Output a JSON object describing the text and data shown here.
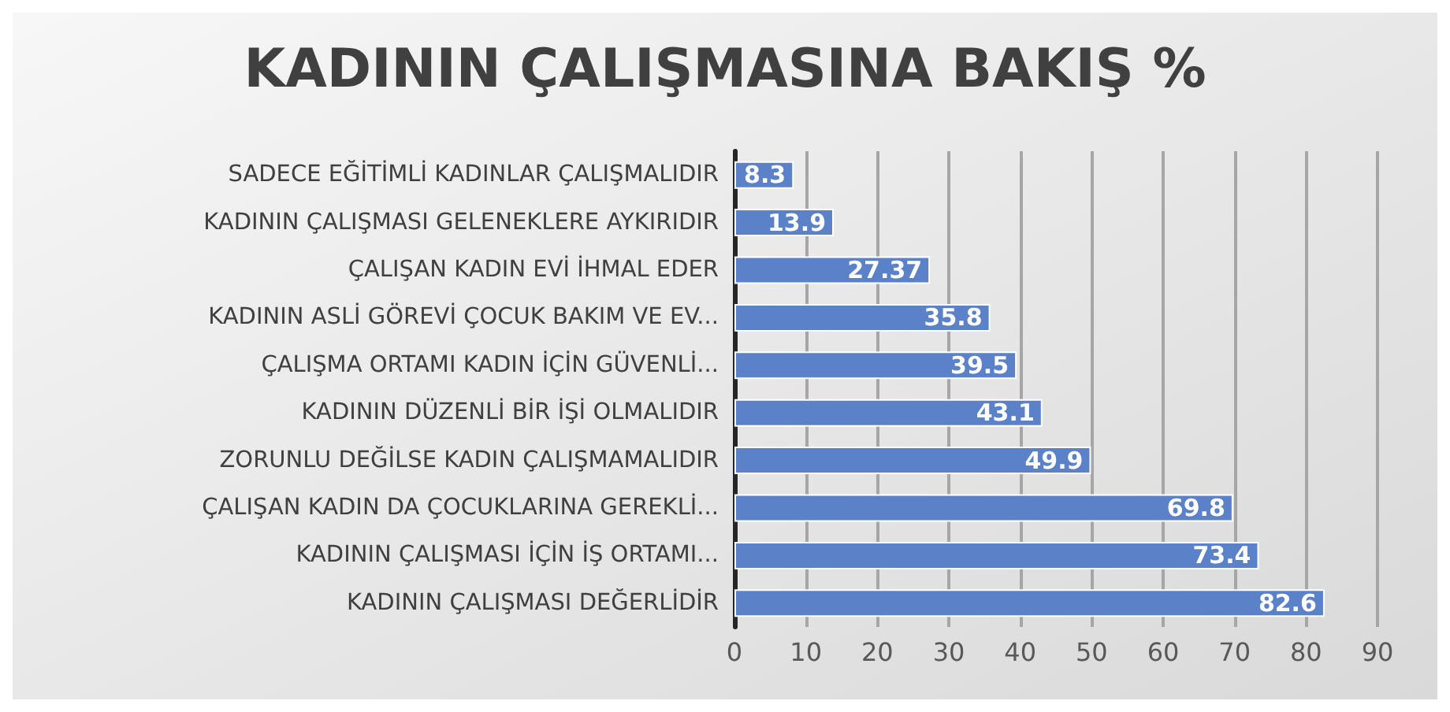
{
  "chart_data": {
    "type": "bar",
    "orientation": "horizontal",
    "title": "KADININ ÇALIŞMASINA BAKIŞ %",
    "categories": [
      "SADECE EĞİTİMLİ KADINLAR ÇALIŞMALIDIR",
      "KADININ ÇALIŞMASI GELENEKLERE AYKIRIDIR",
      "ÇALIŞAN KADIN EVİ İHMAL EDER",
      "KADININ ASLİ GÖREVİ ÇOCUK BAKIM VE EV...",
      "ÇALIŞMA ORTAMI KADIN İÇİN GÜVENLİ...",
      "KADININ DÜZENLİ BİR İŞİ OLMALIDIR",
      "ZORUNLU DEĞİLSE KADIN ÇALIŞMAMALIDIR",
      "ÇALIŞAN KADIN DA ÇOCUKLARINA GEREKLİ...",
      "KADININ ÇALIŞMASI İÇİN İŞ ORTAMI...",
      "KADININ ÇALIŞMASI DEĞERLİDİR"
    ],
    "values": [
      8.3,
      13.9,
      27.37,
      35.8,
      39.5,
      43.1,
      49.9,
      69.8,
      73.4,
      82.6
    ],
    "color": "#5b82c9",
    "data_labels": true,
    "grid": "x",
    "xlim": [
      0,
      90
    ],
    "xticks": [
      0,
      10,
      20,
      30,
      40,
      50,
      60,
      70,
      80,
      90
    ]
  }
}
